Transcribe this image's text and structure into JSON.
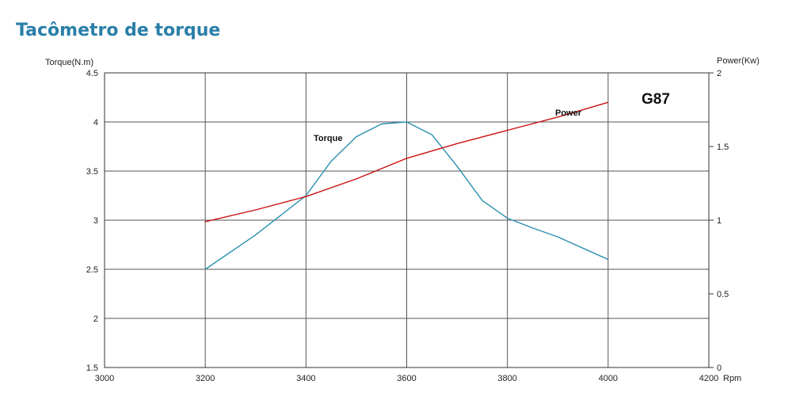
{
  "page": {
    "title": "Tacômetro de torque"
  },
  "chart_data": {
    "type": "line",
    "xlabel": "Rpm",
    "ylabel_left": "Torque(N.m)",
    "ylabel_right": "Power(Kw)",
    "xlim": [
      3000,
      4200
    ],
    "ylim_left": [
      1.5,
      4.5
    ],
    "ylim_right": [
      0,
      2
    ],
    "x_ticks": [
      3000,
      3200,
      3400,
      3600,
      3800,
      4000,
      4200
    ],
    "y_left_ticks": [
      1.5,
      2,
      2.5,
      3,
      3.5,
      4,
      4.5
    ],
    "y_right_ticks": [
      0,
      0.5,
      1,
      1.5,
      2
    ],
    "x_tick_labels": [
      "3000",
      "3200",
      "3400",
      "3600",
      "3800",
      "4000",
      "4200"
    ],
    "y_left_tick_labels": [
      "1.5",
      "2",
      "2.5",
      "3",
      "3.5",
      "4",
      "4.5"
    ],
    "y_right_tick_labels": [
      "0",
      "0.5",
      "1",
      "1.5",
      "2"
    ],
    "grid": true,
    "annotation": "G87",
    "series": [
      {
        "name": "Torque",
        "axis": "left",
        "color": "#2a8fb0",
        "x": [
          3200,
          3300,
          3400,
          3450,
          3500,
          3550,
          3600,
          3650,
          3700,
          3750,
          3800,
          3850,
          3900,
          4000
        ],
        "y": [
          2.5,
          2.85,
          3.25,
          3.6,
          3.85,
          3.98,
          4.0,
          3.87,
          3.55,
          3.2,
          3.02,
          2.92,
          2.83,
          2.6
        ]
      },
      {
        "name": "Power",
        "axis": "right",
        "color": "#cc1111",
        "x": [
          3200,
          3300,
          3400,
          3500,
          3600,
          3700,
          3800,
          3900,
          4000
        ],
        "y": [
          0.99,
          1.07,
          1.16,
          1.28,
          1.42,
          1.52,
          1.61,
          1.7,
          1.8
        ]
      }
    ]
  }
}
